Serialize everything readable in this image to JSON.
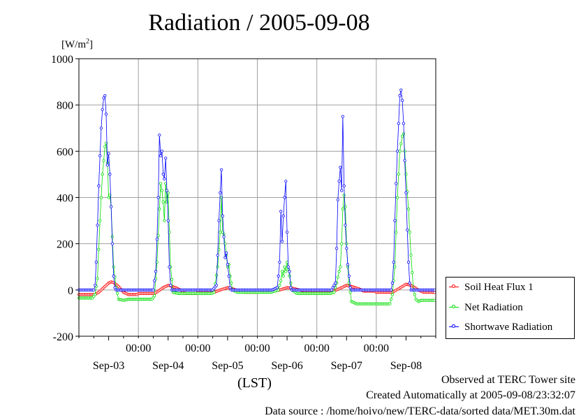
{
  "title": "Radiation / 2005-09-08",
  "unit": {
    "base": "[W/m",
    "sup": "2",
    "close": "]"
  },
  "x_unit_label": "(LST)",
  "footer": {
    "observed": "Observed at TERC Tower site",
    "created": "Created Automatically at 2005-09-08/23:32:07",
    "source": "Data source : /home/hoivo/new/TERC-data/sorted  data/MET.30m.dat"
  },
  "chart_data": {
    "type": "line",
    "title": "Radiation / 2005-09-08",
    "ylabel": "[W/m2]",
    "xlabel": "(LST)",
    "ylim": [
      -200,
      1000
    ],
    "yticks": [
      -200,
      0,
      200,
      400,
      600,
      800,
      1000
    ],
    "xlim_days": [
      -0.5,
      5.5
    ],
    "grid": true,
    "legend_position": "bottom-right, outside plot",
    "x_time_labels": [
      "00:00",
      "00:00",
      "00:00",
      "00:00",
      "00:00"
    ],
    "x_date_labels": [
      "Sep-03",
      "Sep-04",
      "Sep-05",
      "Sep-06",
      "Sep-07",
      "Sep-08"
    ],
    "series": [
      {
        "name": "Soil Heat Flux 1",
        "color": "#ff0000",
        "days": [
          {
            "night": -20,
            "start": 6.5,
            "end": 18,
            "peak": 35,
            "profile": [
              [
                6.5,
                -20
              ],
              [
                8,
                -10
              ],
              [
                10,
                10
              ],
              [
                12,
                30
              ],
              [
                13,
                35
              ],
              [
                14,
                32
              ],
              [
                16,
                15
              ],
              [
                18,
                -10
              ],
              [
                20,
                -20
              ]
            ]
          },
          {
            "night": -15,
            "start": 6.5,
            "end": 18,
            "peak": 20,
            "profile": [
              [
                6.5,
                -15
              ],
              [
                8,
                -5
              ],
              [
                10,
                10
              ],
              [
                12,
                20
              ],
              [
                13,
                18
              ],
              [
                15,
                10
              ],
              [
                17,
                0
              ],
              [
                19,
                -15
              ]
            ]
          },
          {
            "night": -10,
            "start": 6.5,
            "end": 18,
            "peak": 10,
            "profile": [
              [
                6.5,
                -10
              ],
              [
                9,
                0
              ],
              [
                12,
                10
              ],
              [
                14,
                5
              ],
              [
                17,
                -5
              ],
              [
                19,
                -10
              ]
            ]
          },
          {
            "night": -5,
            "start": 6.5,
            "end": 18,
            "peak": 10,
            "profile": [
              [
                6.5,
                -5
              ],
              [
                9,
                0
              ],
              [
                12,
                10
              ],
              [
                14,
                8
              ],
              [
                17,
                0
              ],
              [
                19,
                -5
              ]
            ]
          },
          {
            "night": -5,
            "start": 6.5,
            "end": 18,
            "peak": 20,
            "profile": [
              [
                6.5,
                -5
              ],
              [
                9,
                5
              ],
              [
                12,
                20
              ],
              [
                14,
                15
              ],
              [
                17,
                5
              ],
              [
                19,
                -5
              ]
            ]
          },
          {
            "night": -10,
            "start": 6.5,
            "end": 18,
            "peak": 25,
            "profile": [
              [
                6.5,
                -10
              ],
              [
                9,
                5
              ],
              [
                12,
                25
              ],
              [
                14,
                20
              ],
              [
                17,
                0
              ],
              [
                19,
                -10
              ]
            ]
          }
        ]
      },
      {
        "name": "Net Radiation",
        "color": "#00dd00",
        "days": [
          {
            "night": -35,
            "profile": [
              [
                5.5,
                -35
              ],
              [
                6.5,
                -20
              ],
              [
                7.5,
                50
              ],
              [
                8.5,
                300
              ],
              [
                9.5,
                500
              ],
              [
                10.5,
                620
              ],
              [
                11,
                635
              ],
              [
                11.5,
                550
              ],
              [
                12,
                400
              ],
              [
                12.5,
                410
              ],
              [
                13,
                360
              ],
              [
                13.5,
                230
              ],
              [
                14,
                100
              ],
              [
                15,
                10
              ],
              [
                16,
                -40
              ],
              [
                18,
                -45
              ],
              [
                20,
                -40
              ]
            ]
          },
          {
            "night": -40,
            "profile": [
              [
                5.5,
                -40
              ],
              [
                6.5,
                -25
              ],
              [
                7.5,
                120
              ],
              [
                8.5,
                350
              ],
              [
                9,
                460
              ],
              [
                9.5,
                430
              ],
              [
                10,
                380
              ],
              [
                10.5,
                300
              ],
              [
                11,
                460
              ],
              [
                11.5,
                380
              ],
              [
                12,
                420
              ],
              [
                12.5,
                250
              ],
              [
                13,
                100
              ],
              [
                14,
                -10
              ],
              [
                16,
                -15
              ],
              [
                20,
                -15
              ]
            ]
          },
          {
            "night": -15,
            "profile": [
              [
                5.5,
                -15
              ],
              [
                6.5,
                -10
              ],
              [
                8,
                100
              ],
              [
                9,
                250
              ],
              [
                9.5,
                400
              ],
              [
                10,
                250
              ],
              [
                10.5,
                240
              ],
              [
                11,
                200
              ],
              [
                11.5,
                150
              ],
              [
                12,
                100
              ],
              [
                12.5,
                110
              ],
              [
                13,
                60
              ],
              [
                14,
                0
              ],
              [
                16,
                -10
              ],
              [
                20,
                -10
              ]
            ]
          },
          {
            "night": -10,
            "profile": [
              [
                5.5,
                -10
              ],
              [
                7,
                -5
              ],
              [
                8.5,
                0
              ],
              [
                9.5,
                40
              ],
              [
                10,
                80
              ],
              [
                10.5,
                60
              ],
              [
                11,
                100
              ],
              [
                11.5,
                80
              ],
              [
                12,
                120
              ],
              [
                12.5,
                90
              ],
              [
                13,
                60
              ],
              [
                14,
                0
              ],
              [
                16,
                -15
              ],
              [
                20,
                -15
              ]
            ]
          },
          {
            "night": -15,
            "profile": [
              [
                5.5,
                -15
              ],
              [
                7,
                -10
              ],
              [
                8,
                30
              ],
              [
                9,
                80
              ],
              [
                9.5,
                100
              ],
              [
                10,
                200
              ],
              [
                10.5,
                350
              ],
              [
                11,
                410
              ],
              [
                11.5,
                360
              ],
              [
                12,
                200
              ],
              [
                12.5,
                100
              ],
              [
                13,
                30
              ],
              [
                14,
                -50
              ],
              [
                16,
                -60
              ],
              [
                20,
                -60
              ]
            ]
          },
          {
            "night": -60,
            "profile": [
              [
                5.5,
                -60
              ],
              [
                6.5,
                -20
              ],
              [
                7.5,
                100
              ],
              [
                8.5,
                400
              ],
              [
                9.5,
                600
              ],
              [
                10.5,
                665
              ],
              [
                11,
                675
              ],
              [
                11.5,
                600
              ],
              [
                12,
                500
              ],
              [
                13,
                350
              ],
              [
                14,
                150
              ],
              [
                15,
                0
              ],
              [
                16,
                -40
              ],
              [
                17,
                -50
              ],
              [
                18,
                -45
              ]
            ]
          }
        ]
      },
      {
        "name": "Shortwave Radiation",
        "color": "#0000ff",
        "days": [
          {
            "night": 0,
            "profile": [
              [
                6,
                0
              ],
              [
                6.5,
                20
              ],
              [
                7,
                120
              ],
              [
                7.5,
                280
              ],
              [
                8,
                450
              ],
              [
                8.5,
                580
              ],
              [
                9,
                700
              ],
              [
                9.5,
                780
              ],
              [
                10,
                830
              ],
              [
                10.5,
                840
              ],
              [
                11,
                760
              ],
              [
                11.5,
                540
              ],
              [
                12,
                590
              ],
              [
                12.5,
                500
              ],
              [
                13,
                360
              ],
              [
                13.5,
                200
              ],
              [
                14,
                60
              ],
              [
                14.5,
                10
              ],
              [
                15,
                0
              ]
            ]
          },
          {
            "night": 0,
            "profile": [
              [
                6,
                0
              ],
              [
                7,
                80
              ],
              [
                7.5,
                220
              ],
              [
                8,
                400
              ],
              [
                8.5,
                670
              ],
              [
                9,
                580
              ],
              [
                9.5,
                600
              ],
              [
                10,
                500
              ],
              [
                10.5,
                480
              ],
              [
                11,
                570
              ],
              [
                11.5,
                430
              ],
              [
                12,
                300
              ],
              [
                12.5,
                100
              ],
              [
                13,
                20
              ],
              [
                13.5,
                0
              ]
            ]
          },
          {
            "night": 0,
            "profile": [
              [
                6,
                0
              ],
              [
                7.5,
                20
              ],
              [
                8,
                150
              ],
              [
                8.5,
                300
              ],
              [
                9,
                420
              ],
              [
                9.5,
                520
              ],
              [
                10,
                320
              ],
              [
                10.5,
                230
              ],
              [
                11,
                140
              ],
              [
                11.5,
                160
              ],
              [
                12,
                110
              ],
              [
                12.5,
                60
              ],
              [
                13,
                10
              ],
              [
                13.5,
                0
              ]
            ]
          },
          {
            "night": 0,
            "profile": [
              [
                6,
                0
              ],
              [
                8,
                10
              ],
              [
                8.5,
                60
              ],
              [
                9,
                120
              ],
              [
                9.5,
                340
              ],
              [
                10,
                210
              ],
              [
                10.5,
                320
              ],
              [
                11,
                400
              ],
              [
                11.5,
                470
              ],
              [
                12,
                250
              ],
              [
                12.5,
                100
              ],
              [
                13,
                80
              ],
              [
                13.5,
                10
              ],
              [
                14,
                0
              ]
            ]
          },
          {
            "night": 0,
            "profile": [
              [
                6,
                0
              ],
              [
                7.5,
                30
              ],
              [
                8,
                180
              ],
              [
                8.5,
                390
              ],
              [
                9,
                470
              ],
              [
                9.5,
                530
              ],
              [
                10,
                430
              ],
              [
                10.5,
                750
              ],
              [
                11,
                450
              ],
              [
                11.5,
                280
              ],
              [
                12,
                180
              ],
              [
                12.5,
                110
              ],
              [
                13,
                60
              ],
              [
                13.5,
                10
              ],
              [
                14,
                0
              ]
            ]
          },
          {
            "night": 0,
            "profile": [
              [
                6,
                0
              ],
              [
                6.5,
                30
              ],
              [
                7,
                120
              ],
              [
                7.5,
                300
              ],
              [
                8,
                460
              ],
              [
                8.5,
                600
              ],
              [
                9,
                720
              ],
              [
                9.5,
                840
              ],
              [
                10,
                865
              ],
              [
                10.5,
                820
              ],
              [
                11,
                720
              ],
              [
                11.5,
                560
              ],
              [
                12,
                420
              ],
              [
                12.5,
                260
              ],
              [
                13,
                120
              ],
              [
                13.5,
                30
              ],
              [
                14,
                0
              ]
            ]
          }
        ]
      }
    ]
  }
}
